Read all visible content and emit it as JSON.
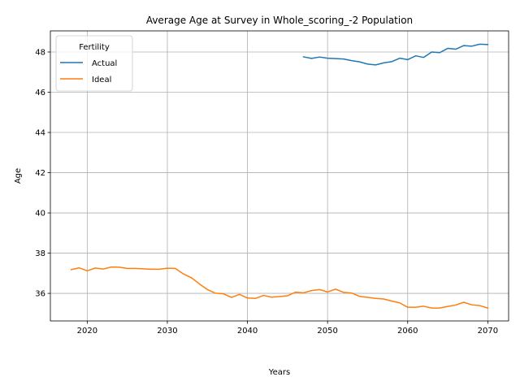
{
  "chart_data": {
    "type": "line",
    "title": "Average Age at Survey in Whole_scoring_-2 Population",
    "xlabel": "Years",
    "ylabel": "Age",
    "xlim": [
      2015.4,
      2072.6
    ],
    "ylim": [
      34.63,
      49.05
    ],
    "xticks": [
      2020,
      2030,
      2040,
      2050,
      2060,
      2070
    ],
    "yticks": [
      36,
      38,
      40,
      42,
      44,
      46,
      48
    ],
    "grid": true,
    "legend": {
      "title": "Fertility",
      "placement": "top-left"
    },
    "series": [
      {
        "name": "Actual",
        "color": "#1f77b4",
        "x": [
          2047,
          2048,
          2049,
          2050,
          2051,
          2052,
          2053,
          2054,
          2055,
          2056,
          2057,
          2058,
          2059,
          2060,
          2061,
          2062,
          2063,
          2064,
          2065,
          2066,
          2067,
          2068,
          2069,
          2070
        ],
        "y": [
          47.76,
          47.68,
          47.75,
          47.69,
          47.67,
          47.65,
          47.57,
          47.51,
          47.4,
          47.36,
          47.46,
          47.52,
          47.69,
          47.62,
          47.81,
          47.73,
          48.0,
          47.97,
          48.18,
          48.14,
          48.32,
          48.29,
          48.39,
          48.37
        ]
      },
      {
        "name": "Ideal",
        "color": "#ff7f0e",
        "x": [
          2018,
          2019,
          2020,
          2021,
          2022,
          2023,
          2024,
          2025,
          2026,
          2027,
          2028,
          2029,
          2030,
          2031,
          2032,
          2033,
          2034,
          2035,
          2036,
          2037,
          2038,
          2039,
          2040,
          2041,
          2042,
          2043,
          2044,
          2045,
          2046,
          2047,
          2048,
          2049,
          2050,
          2051,
          2052,
          2053,
          2054,
          2055,
          2056,
          2057,
          2058,
          2059,
          2060,
          2061,
          2062,
          2063,
          2064,
          2065,
          2066,
          2067,
          2068,
          2069,
          2070
        ],
        "y": [
          37.18,
          37.27,
          37.12,
          37.26,
          37.21,
          37.31,
          37.3,
          37.24,
          37.24,
          37.22,
          37.2,
          37.2,
          37.25,
          37.24,
          36.97,
          36.78,
          36.47,
          36.19,
          36.01,
          35.98,
          35.8,
          35.95,
          35.77,
          35.75,
          35.9,
          35.81,
          35.84,
          35.88,
          36.06,
          36.03,
          36.14,
          36.19,
          36.07,
          36.21,
          36.05,
          36.02,
          35.85,
          35.8,
          35.75,
          35.72,
          35.62,
          35.53,
          35.31,
          35.31,
          35.36,
          35.27,
          35.27,
          35.35,
          35.42,
          35.56,
          35.43,
          35.39,
          35.27
        ]
      }
    ]
  }
}
